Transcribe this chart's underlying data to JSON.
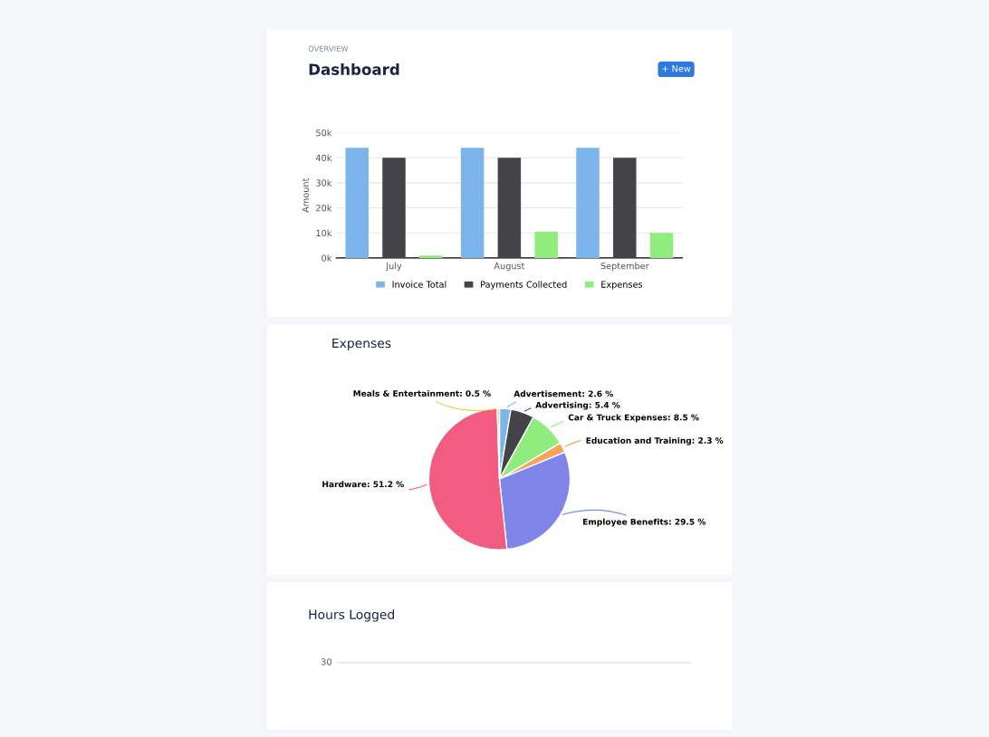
{
  "chart_data": [
    {
      "type": "other",
      "title": "Dashboard",
      "subtitle": "OVERVIEW",
      "annotations": [
        "+ New"
      ]
    },
    {
      "type": "bar",
      "categories": [
        "July",
        "August",
        "September"
      ],
      "ylabel": "Amount",
      "series": [
        {
          "name": "Invoice Total",
          "color": "#7cb5ec",
          "values": [
            44000,
            44000,
            44000
          ]
        },
        {
          "name": "Payments Collected",
          "color": "#434348",
          "values": [
            40000,
            40000,
            40000
          ]
        },
        {
          "name": "Expenses",
          "color": "#90ed7d",
          "values": [
            1000,
            10500,
            10000
          ]
        }
      ],
      "ylim": [
        0,
        50000
      ],
      "yticks": [
        {
          "value": 0,
          "label": "0k"
        },
        {
          "value": 10000,
          "label": "10k"
        },
        {
          "value": 20000,
          "label": "20k"
        },
        {
          "value": 30000,
          "label": "30k"
        },
        {
          "value": 40000,
          "label": "40k"
        },
        {
          "value": 50000,
          "label": "50k"
        }
      ],
      "grid": "y",
      "legend": "bottom"
    },
    {
      "type": "pie",
      "title": "Expenses",
      "categories": [
        "Advertisement",
        "Advertising",
        "Car & Truck Expenses",
        "Education and Training",
        "Employee Benefits",
        "Hardware",
        "Meals & Entertainment"
      ],
      "values": [
        2.6,
        5.4,
        8.5,
        2.3,
        29.5,
        51.2,
        0.5
      ],
      "colors": [
        "#7cb5ec",
        "#434348",
        "#90ed7d",
        "#f7a35c",
        "#8085e9",
        "#f15c80",
        "#e4d354"
      ],
      "value_labels": [
        "2.6 %",
        "5.4 %",
        "8.5 %",
        "2.3 %",
        "29.5 %",
        "51.2 %",
        "0.5 %"
      ]
    },
    {
      "type": "other",
      "title": "Hours Logged",
      "annotations": [
        "30"
      ]
    }
  ]
}
